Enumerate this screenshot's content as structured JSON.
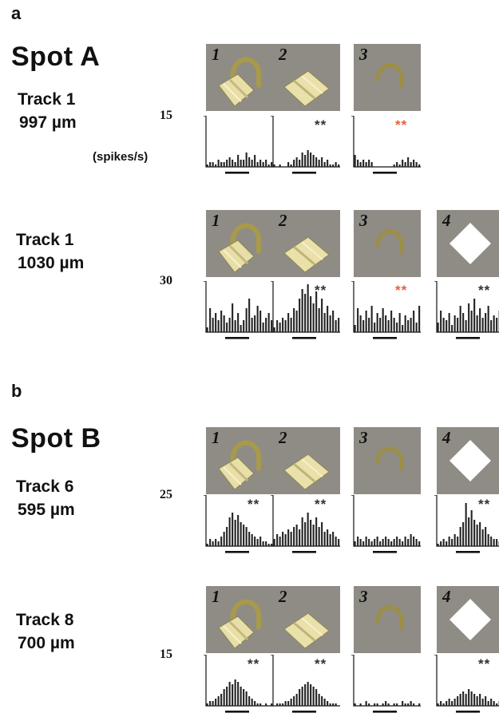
{
  "panels": [
    {
      "letter": "a",
      "spot": "Spot A",
      "rows": [
        {
          "track": "Track 1",
          "depth": "997 µm",
          "ymax": "15",
          "ylabel": "(spikes/s)",
          "stimuli": [
            {
              "num": "1",
              "shape": "lock",
              "sig": "",
              "sig_color": "#333333",
              "bars": [
                1,
                2,
                2,
                1,
                3,
                2,
                2,
                3,
                4,
                3,
                2,
                5,
                3,
                3,
                6,
                4,
                3,
                5,
                2,
                3,
                2,
                3,
                1,
                2
              ]
            },
            {
              "num": "2",
              "shape": "block",
              "sig": "**",
              "sig_color": "#333333",
              "bars": [
                1,
                0,
                1,
                0,
                0,
                2,
                1,
                3,
                4,
                3,
                6,
                5,
                7,
                6,
                5,
                4,
                3,
                4,
                2,
                3,
                1,
                1,
                2,
                1
              ]
            },
            {
              "num": "3",
              "shape": "arc",
              "sig": "**",
              "sig_color": "#e8603c",
              "bars": [
                5,
                3,
                2,
                3,
                2,
                3,
                2,
                0,
                0,
                0,
                0,
                0,
                0,
                0,
                1,
                2,
                1,
                3,
                2,
                4,
                2,
                3,
                2,
                1
              ]
            }
          ]
        },
        {
          "track": "Track 1",
          "depth": "1030 µm",
          "ymax": "30",
          "ylabel": "",
          "stimuli": [
            {
              "num": "1",
              "shape": "lock",
              "sig": "",
              "sig_color": "#333333",
              "bars": [
                2,
                10,
                6,
                8,
                5,
                9,
                7,
                4,
                6,
                12,
                5,
                8,
                3,
                5,
                10,
                14,
                6,
                7,
                11,
                9,
                4,
                6,
                8,
                5
              ]
            },
            {
              "num": "2",
              "shape": "block",
              "sig": "**",
              "sig_color": "#333333",
              "bars": [
                2,
                5,
                4,
                6,
                5,
                8,
                6,
                10,
                9,
                14,
                18,
                16,
                20,
                15,
                12,
                17,
                10,
                14,
                8,
                11,
                7,
                9,
                5,
                6
              ]
            },
            {
              "num": "3",
              "shape": "arc",
              "sig": "**",
              "sig_color": "#e8603c",
              "bars": [
                3,
                10,
                7,
                5,
                9,
                6,
                11,
                4,
                8,
                6,
                10,
                7,
                5,
                9,
                6,
                4,
                8,
                3,
                7,
                5,
                6,
                9,
                4,
                11
              ]
            },
            {
              "num": "4",
              "shape": "diamond",
              "sig": "**",
              "sig_color": "#333333",
              "bars": [
                4,
                9,
                6,
                5,
                8,
                3,
                7,
                6,
                11,
                8,
                5,
                12,
                9,
                14,
                7,
                10,
                6,
                8,
                11,
                5,
                7,
                6,
                9,
                7
              ]
            }
          ]
        }
      ]
    },
    {
      "letter": "b",
      "spot": "Spot B",
      "rows": [
        {
          "track": "Track 6",
          "depth": "595 µm",
          "ymax": "25",
          "ylabel": "",
          "stimuli": [
            {
              "num": "1",
              "shape": "lock",
              "sig": "**",
              "sig_color": "#333333",
              "bars": [
                1,
                3,
                2,
                3,
                2,
                4,
                6,
                8,
                12,
                14,
                11,
                13,
                10,
                9,
                8,
                6,
                5,
                4,
                3,
                4,
                2,
                2,
                1,
                1
              ]
            },
            {
              "num": "2",
              "shape": "block",
              "sig": "**",
              "sig_color": "#333333",
              "bars": [
                3,
                5,
                4,
                6,
                5,
                7,
                6,
                8,
                9,
                7,
                12,
                10,
                14,
                11,
                9,
                12,
                8,
                10,
                6,
                7,
                5,
                6,
                4,
                3
              ]
            },
            {
              "num": "3",
              "shape": "arc",
              "sig": "",
              "sig_color": "#333333",
              "bars": [
                2,
                4,
                3,
                2,
                4,
                3,
                2,
                3,
                4,
                2,
                3,
                4,
                3,
                2,
                3,
                4,
                3,
                2,
                4,
                3,
                5,
                4,
                3,
                2
              ]
            },
            {
              "num": "4",
              "shape": "diamond",
              "sig": "**",
              "sig_color": "#333333",
              "bars": [
                1,
                2,
                3,
                2,
                4,
                3,
                5,
                4,
                8,
                10,
                18,
                12,
                15,
                11,
                9,
                10,
                7,
                8,
                5,
                4,
                3,
                3,
                2,
                1
              ]
            }
          ]
        },
        {
          "track": "Track 8",
          "depth": "700 µm",
          "ymax": "15",
          "ylabel": "",
          "stimuli": [
            {
              "num": "1",
              "shape": "lock",
              "sig": "**",
              "sig_color": "#333333",
              "bars": [
                1,
                2,
                2,
                3,
                4,
                5,
                7,
                8,
                10,
                9,
                11,
                10,
                8,
                7,
                6,
                4,
                3,
                2,
                1,
                1,
                0,
                1,
                0,
                1
              ]
            },
            {
              "num": "2",
              "shape": "block",
              "sig": "**",
              "sig_color": "#333333",
              "bars": [
                0,
                1,
                1,
                1,
                2,
                2,
                3,
                4,
                5,
                7,
                8,
                9,
                10,
                9,
                8,
                7,
                5,
                4,
                3,
                2,
                1,
                1,
                1,
                0
              ]
            },
            {
              "num": "3",
              "shape": "arc",
              "sig": "",
              "sig_color": "#333333",
              "bars": [
                1,
                0,
                1,
                0,
                2,
                1,
                0,
                1,
                1,
                0,
                1,
                2,
                1,
                0,
                1,
                1,
                0,
                2,
                1,
                1,
                2,
                1,
                0,
                1
              ]
            },
            {
              "num": "4",
              "shape": "diamond",
              "sig": "**",
              "sig_color": "#333333",
              "bars": [
                1,
                2,
                1,
                2,
                3,
                2,
                3,
                4,
                5,
                6,
                5,
                7,
                6,
                5,
                4,
                5,
                3,
                4,
                2,
                3,
                2,
                1,
                2,
                1
              ]
            }
          ]
        }
      ]
    }
  ]
}
